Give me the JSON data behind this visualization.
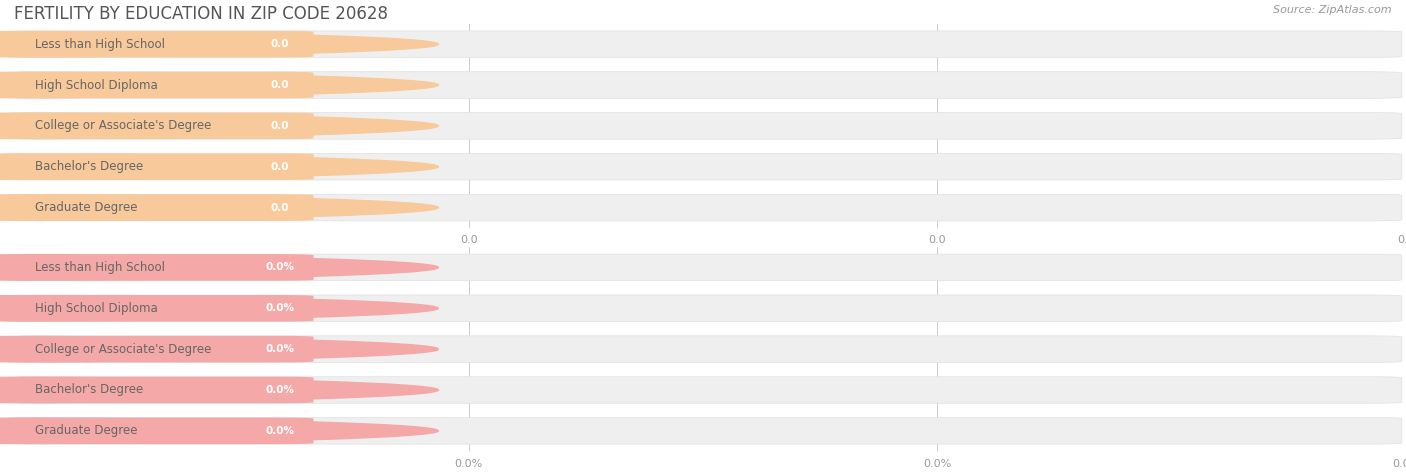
{
  "title": "FERTILITY BY EDUCATION IN ZIP CODE 20628",
  "source": "Source: ZipAtlas.com",
  "categories": [
    "Less than High School",
    "High School Diploma",
    "College or Associate's Degree",
    "Bachelor's Degree",
    "Graduate Degree"
  ],
  "top_values": [
    0.0,
    0.0,
    0.0,
    0.0,
    0.0
  ],
  "bottom_values": [
    0.0,
    0.0,
    0.0,
    0.0,
    0.0
  ],
  "top_bar_color": "#F8C99A",
  "bottom_bar_color": "#F5A8A8",
  "bg_bar_color": "#EFEFEF",
  "bg_bar_border_color": "#E0E0E0",
  "bg_color": "#FFFFFF",
  "grid_color": "#CCCCCC",
  "label_color": "#666666",
  "value_color_top": "#FFFFFF",
  "value_color_bottom": "#FFFFFF",
  "tick_color": "#999999",
  "title_color": "#555555",
  "source_color": "#999999",
  "title_fontsize": 12,
  "label_fontsize": 8.5,
  "value_fontsize": 7.5,
  "tick_fontsize": 8,
  "source_fontsize": 8
}
